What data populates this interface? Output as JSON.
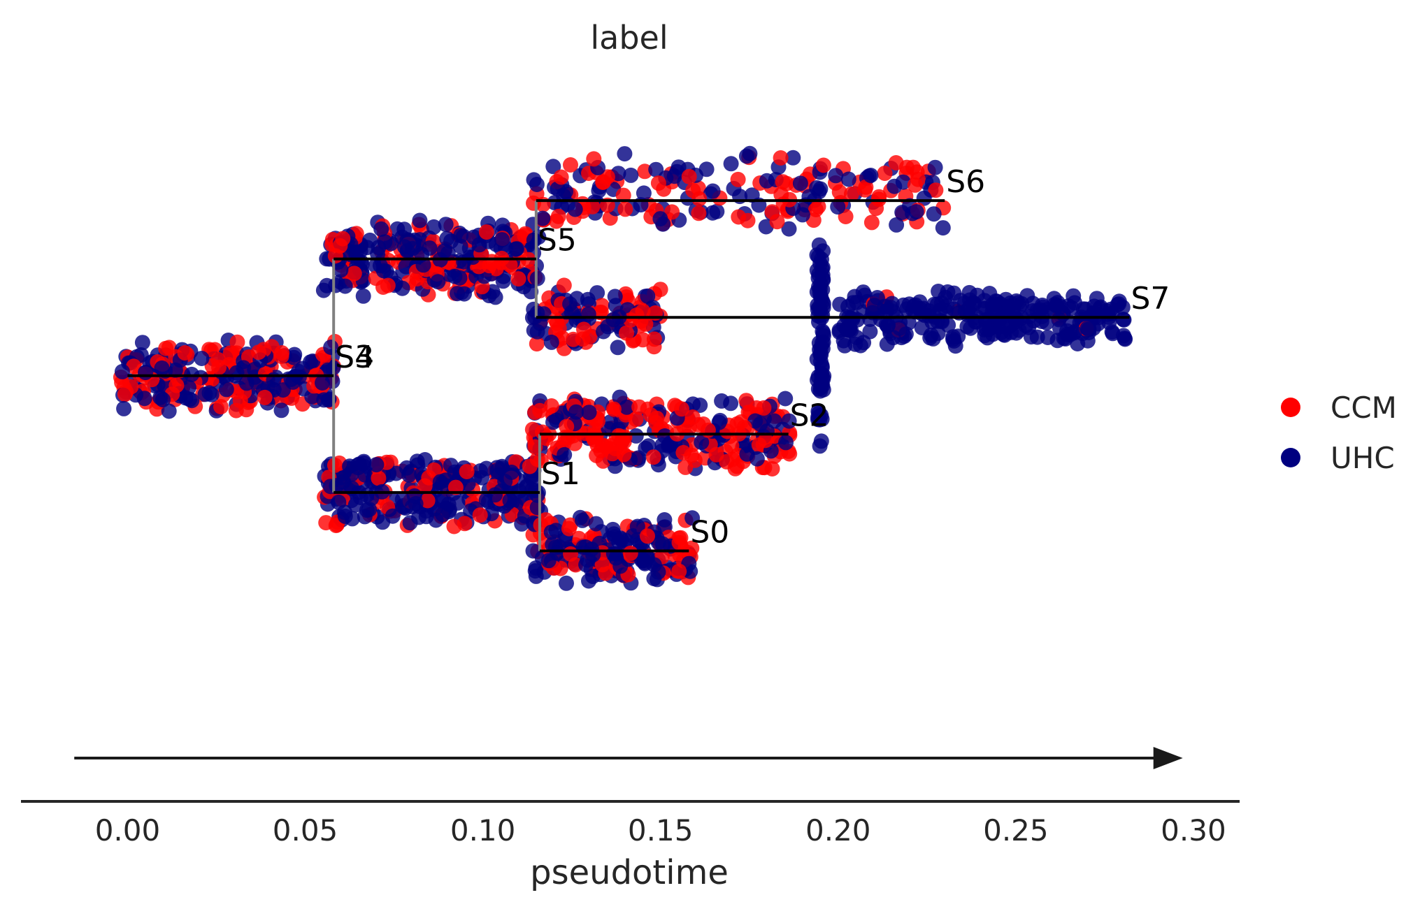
{
  "chart_data": {
    "type": "scatter",
    "subtype": "stream-trajectory",
    "title": "label",
    "xlabel": "pseudotime",
    "ylabel": "",
    "xlim": [
      -0.03,
      0.313
    ],
    "ylim": [
      -1.25,
      1.0
    ],
    "x_ticks": [
      0.0,
      0.05,
      0.1,
      0.15,
      0.2,
      0.25,
      0.3
    ],
    "x_tick_labels": [
      "0.00",
      "0.05",
      "0.10",
      "0.15",
      "0.20",
      "0.25",
      "0.30"
    ],
    "grid": false,
    "legend": {
      "placement": "right",
      "entries": [
        {
          "label": "CCM",
          "color": "#ff0000"
        },
        {
          "label": "UHC",
          "color": "#000080"
        }
      ]
    },
    "segments": [
      {
        "name": "S4",
        "x": [
          0.0,
          0.058
        ],
        "y": 0.0
      },
      {
        "name": "S3",
        "x": [
          0.058,
          0.058
        ],
        "y": 0.0
      },
      {
        "name": "S5",
        "x": [
          0.058,
          0.115
        ],
        "y": 0.4
      },
      {
        "name": "S1",
        "x": [
          0.058,
          0.116
        ],
        "y": -0.4
      },
      {
        "name": "S6",
        "x": [
          0.115,
          0.23
        ],
        "y": 0.6
      },
      {
        "name": "S7",
        "x": [
          0.115,
          0.282
        ],
        "y": 0.2
      },
      {
        "name": "S2",
        "x": [
          0.116,
          0.186
        ],
        "y": -0.2
      },
      {
        "name": "S0",
        "x": [
          0.116,
          0.158
        ],
        "y": -0.6
      }
    ],
    "connectors": [
      {
        "x": 0.058,
        "y": [
          -0.4,
          0.4
        ],
        "color": "#808080"
      },
      {
        "x": 0.115,
        "y": [
          0.2,
          0.6
        ],
        "color": "#808080"
      },
      {
        "x": 0.116,
        "y": [
          -0.6,
          -0.2
        ],
        "color": "#808080"
      }
    ],
    "point_clusters": [
      {
        "segment": "S4",
        "x_range": [
          -0.002,
          0.059
        ],
        "y_center": 0.0,
        "y_spread": 0.13,
        "count": 260,
        "ccm_fraction": 0.45
      },
      {
        "segment": "S5",
        "x_range": [
          0.055,
          0.116
        ],
        "y_center": 0.4,
        "y_spread": 0.14,
        "count": 280,
        "ccm_fraction": 0.35
      },
      {
        "segment": "S1",
        "x_range": [
          0.055,
          0.117
        ],
        "y_center": -0.4,
        "y_spread": 0.13,
        "count": 280,
        "ccm_fraction": 0.25
      },
      {
        "segment": "S6",
        "x_range": [
          0.114,
          0.23
        ],
        "y_center": 0.63,
        "y_spread": 0.14,
        "count": 200,
        "ccm_fraction": 0.55
      },
      {
        "segment": "S7-early",
        "x_range": [
          0.114,
          0.15
        ],
        "y_center": 0.2,
        "y_spread": 0.12,
        "count": 110,
        "ccm_fraction": 0.45
      },
      {
        "segment": "S7-late",
        "x_range": [
          0.2,
          0.282
        ],
        "y_center": 0.2,
        "y_spread": 0.1,
        "count": 260,
        "ccm_fraction": 0.04
      },
      {
        "segment": "S2",
        "x_range": [
          0.114,
          0.187
        ],
        "y_center": -0.2,
        "y_spread": 0.13,
        "count": 280,
        "ccm_fraction": 0.6
      },
      {
        "segment": "S0",
        "x_range": [
          0.114,
          0.159
        ],
        "y_center": -0.6,
        "y_spread": 0.12,
        "count": 200,
        "ccm_fraction": 0.4
      },
      {
        "segment": "vertical-band",
        "x_range": [
          0.194,
          0.196
        ],
        "y_center": 0.1,
        "y_spread": 0.4,
        "count": 70,
        "ccm_fraction": 0.0
      }
    ],
    "arrow": {
      "x": [
        -0.015,
        0.297
      ]
    }
  }
}
